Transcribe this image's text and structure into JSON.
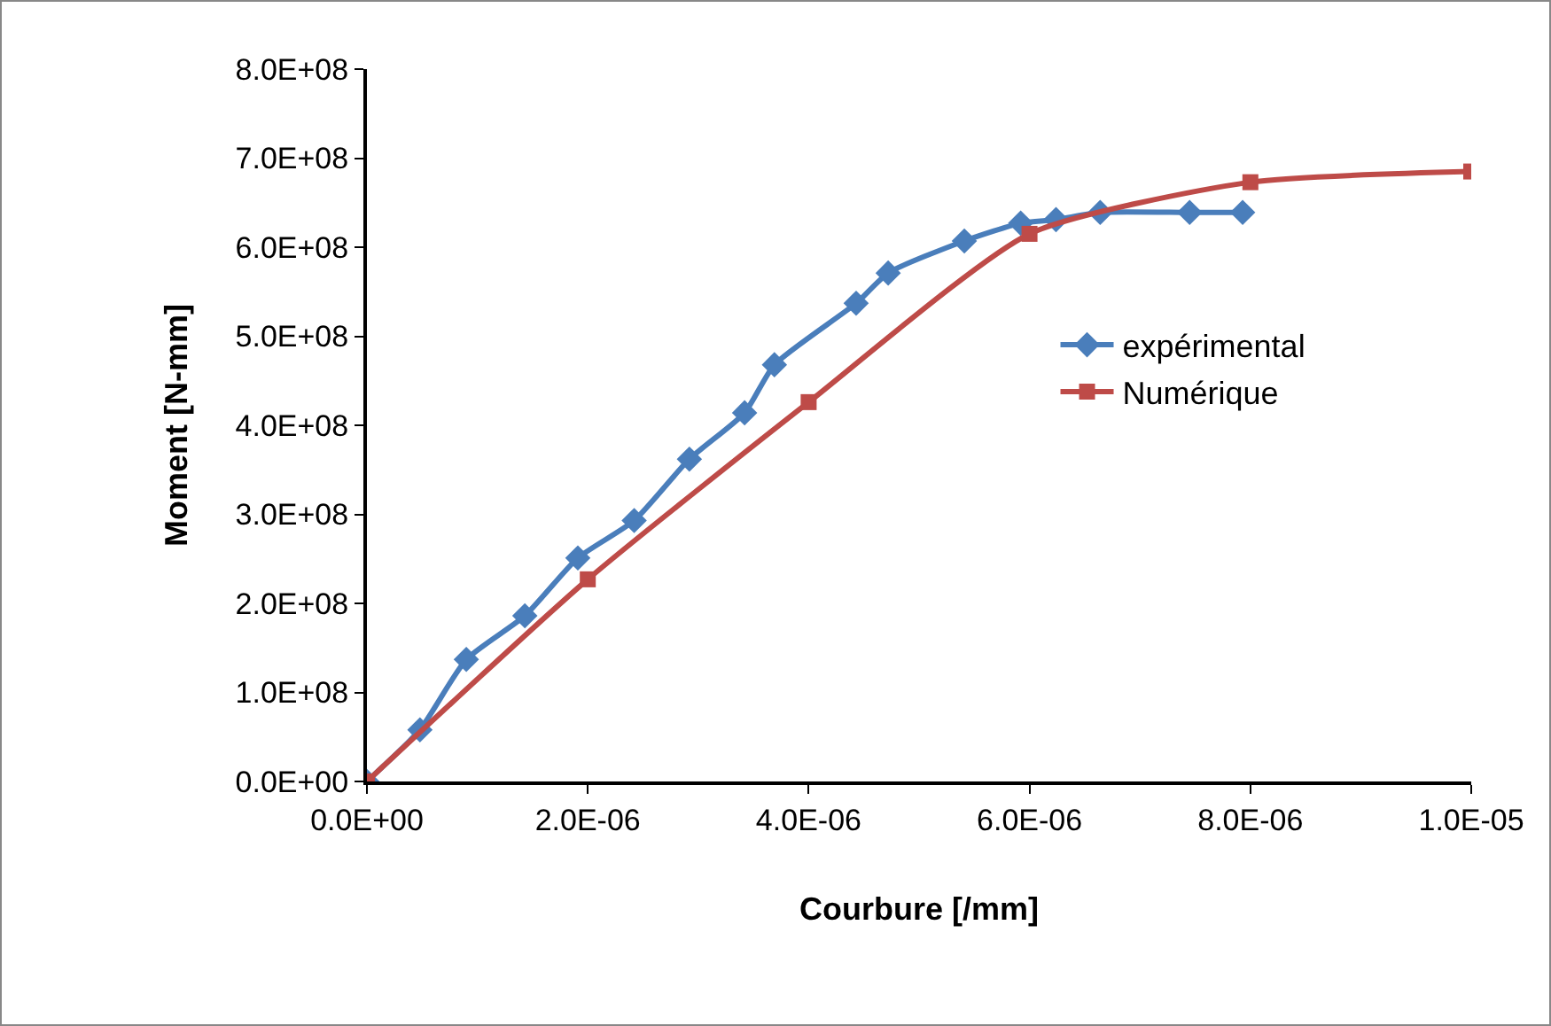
{
  "chart_data": {
    "type": "line",
    "xlabel": "Courbure [/mm]",
    "ylabel": "Moment [N-mm]",
    "xlim": [
      0,
      1e-05
    ],
    "ylim": [
      0,
      800000000
    ],
    "xticks": [
      {
        "value": 0,
        "label": "0.0E+00"
      },
      {
        "value": 2e-06,
        "label": "2.0E-06"
      },
      {
        "value": 4e-06,
        "label": "4.0E-06"
      },
      {
        "value": 6e-06,
        "label": "6.0E-06"
      },
      {
        "value": 8e-06,
        "label": "8.0E-06"
      },
      {
        "value": 1e-05,
        "label": "1.0E-05"
      }
    ],
    "yticks": [
      {
        "value": 0,
        "label": "0.0E+00"
      },
      {
        "value": 100000000,
        "label": "1.0E+08"
      },
      {
        "value": 200000000,
        "label": "2.0E+08"
      },
      {
        "value": 300000000,
        "label": "3.0E+08"
      },
      {
        "value": 400000000,
        "label": "4.0E+08"
      },
      {
        "value": 500000000,
        "label": "5.0E+08"
      },
      {
        "value": 600000000,
        "label": "6.0E+08"
      },
      {
        "value": 700000000,
        "label": "7.0E+08"
      },
      {
        "value": 800000000,
        "label": "8.0E+08"
      }
    ],
    "grid": false,
    "legend": "right",
    "line_style": "solid",
    "series": [
      {
        "name": "expérimental",
        "color": "#4a7ebb",
        "marker": "diamond",
        "x": [
          0,
          4.8e-07,
          9e-07,
          1.43e-06,
          1.91e-06,
          2.42e-06,
          2.92e-06,
          3.42e-06,
          3.69e-06,
          4.43e-06,
          4.72e-06,
          5.41e-06,
          5.92e-06,
          6.24e-06,
          6.64e-06,
          7.45e-06,
          7.93e-06
        ],
        "values": [
          0,
          58000000,
          137000000,
          186000000,
          251000000,
          293000000,
          362000000,
          414000000,
          468000000,
          537000000,
          571000000,
          607000000,
          627000000,
          631000000,
          639000000,
          639000000,
          639000000
        ]
      },
      {
        "name": "Numérique",
        "color": "#be4b48",
        "marker": "square",
        "x": [
          0,
          2e-06,
          4e-06,
          6e-06,
          8e-06,
          1e-05
        ],
        "values": [
          0,
          227000000,
          426000000,
          615000000,
          673000000,
          685000000
        ]
      }
    ]
  }
}
